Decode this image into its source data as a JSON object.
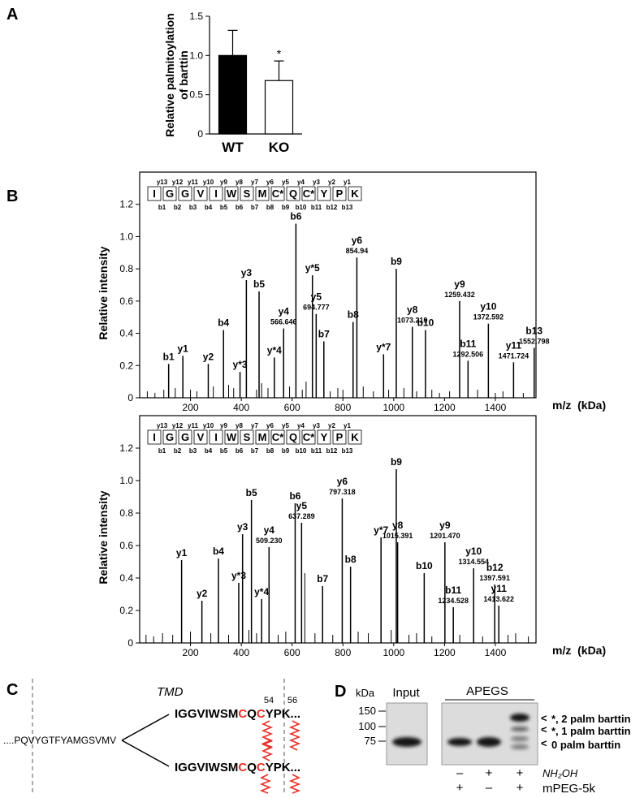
{
  "chart_data": [
    {
      "type": "bar",
      "panel": "A",
      "ylabel": [
        "Relative palmitoylation",
        "of barttin"
      ],
      "categories": [
        "WT",
        "KO"
      ],
      "values": [
        1.0,
        0.68
      ],
      "errors": [
        0.32,
        0.25
      ],
      "colors": [
        "#000000",
        "#ffffff"
      ],
      "annotations": [
        null,
        "*"
      ],
      "ylim": [
        0,
        1.5
      ],
      "yticks": [
        0,
        0.5,
        {
          "value": 1,
          "label": "1.0"
        },
        1.5
      ]
    },
    {
      "type": "spectrum",
      "panel": "B",
      "sequence": [
        "I",
        "G",
        "G",
        "V",
        "I",
        "W",
        "S",
        "M",
        "C*",
        "Q",
        "C*",
        "Y",
        "P",
        "K"
      ],
      "residue_colors": [
        "#000",
        "#000",
        "#000",
        "#000",
        "#000",
        "#000",
        "#000",
        "#000",
        "#e8312a",
        "#000",
        "#e8312a",
        "#000",
        "#000",
        "#000"
      ],
      "y_ions": [
        "y13",
        "y12",
        "y11",
        "y10",
        "y9",
        "y8",
        "y7",
        "y6",
        "y5",
        "y4",
        "y3",
        "y2",
        "y1"
      ],
      "b_ions": [
        "b1",
        "b2",
        "b3",
        "b4",
        "b5",
        "b6",
        "b7",
        "b8",
        "b9",
        "b10",
        "b11",
        "b12",
        "b13"
      ],
      "ylabel": "Relative intensity",
      "xlabel": "m/z  (kDa)",
      "x": [
        114,
        170,
        270,
        330,
        395,
        420,
        470,
        530,
        566.646,
        615,
        680,
        694.777,
        725,
        840,
        854.94,
        960,
        1010,
        1073.219,
        1125,
        1259.432,
        1292.506,
        1372.592,
        1471.724,
        1552.798
      ],
      "values": [
        0.21,
        0.26,
        0.21,
        0.42,
        0.16,
        0.73,
        0.66,
        0.25,
        0.43,
        1.08,
        0.76,
        0.52,
        0.35,
        0.47,
        0.87,
        0.27,
        0.8,
        0.44,
        0.42,
        0.6,
        0.23,
        0.46,
        0.22,
        0.31
      ],
      "ions": [
        "b1",
        "y1",
        "y2",
        "b4",
        "y*3",
        "y3",
        "b5",
        "y*4",
        "y4",
        "b6",
        "y*5",
        "y5",
        "b7",
        "b8",
        "y6",
        "y*7",
        "b9",
        "y8",
        "b10",
        "y9",
        "b11",
        "y10",
        "y11",
        "b13"
      ],
      "mz_labels": [
        null,
        null,
        null,
        null,
        null,
        null,
        null,
        null,
        "566.646",
        null,
        null,
        "694.777",
        null,
        null,
        "854.94",
        null,
        null,
        "1073.219",
        null,
        "1259.432",
        "1292.506",
        "1372.592",
        "1471.724",
        "1552.798"
      ],
      "label_colors": [
        "#000",
        "#000",
        "#000",
        "#000",
        "#000",
        "#000",
        "#000",
        "#000",
        "#e8312a",
        "#000",
        "#000",
        "#e8312a",
        "#000",
        "#000",
        "#e8312a",
        "#000",
        "#000",
        "#e8312a",
        "#000",
        "#e8312a",
        "#1a7fc1",
        "#e8312a",
        "#e8312a",
        "#1a7fc1"
      ],
      "minor_x": [
        30,
        60,
        95,
        140,
        200,
        225,
        290,
        350,
        370,
        460,
        480,
        505,
        590,
        640,
        655,
        750,
        780,
        800,
        880,
        920,
        980,
        1040,
        1090,
        1150,
        1180,
        1220,
        1330,
        1400,
        1430,
        1510
      ],
      "minor_values": [
        0.04,
        0.03,
        0.05,
        0.06,
        0.05,
        0.04,
        0.07,
        0.08,
        0.06,
        0.05,
        0.09,
        0.06,
        0.07,
        0.05,
        0.1,
        0.04,
        0.06,
        0.05,
        0.07,
        0.04,
        0.05,
        0.06,
        0.04,
        0.05,
        0.03,
        0.04,
        0.05,
        0.03,
        0.04,
        0.03
      ],
      "xlim": [
        0,
        1560
      ],
      "ylim": [
        0,
        1.4
      ],
      "xticks": [
        200,
        400,
        600,
        800,
        1000,
        1200,
        1400
      ],
      "yticks": [
        0,
        0.2,
        0.4,
        0.6,
        0.8,
        {
          "value": 1,
          "label": "1.0"
        },
        1.2
      ]
    },
    {
      "type": "spectrum",
      "sequence": [
        "I",
        "G",
        "G",
        "V",
        "I",
        "W",
        "S",
        "M",
        "C*",
        "Q",
        "C*",
        "Y",
        "P",
        "K"
      ],
      "residue_colors": [
        "#000",
        "#000",
        "#000",
        "#000",
        "#000",
        "#000",
        "#000",
        "#000",
        "#e8312a",
        "#000",
        "#000",
        "#000",
        "#000",
        "#000"
      ],
      "y_ions": [
        "y13",
        "y12",
        "y11",
        "y10",
        "y9",
        "y8",
        "y7",
        "y6",
        "y5",
        "y4",
        "y3",
        "y2",
        "y1"
      ],
      "b_ions": [
        "b1",
        "b2",
        "b3",
        "b4",
        "b5",
        "b6",
        "b7",
        "b8",
        "b9",
        "b10",
        "b11",
        "b12",
        "b13"
      ],
      "ylabel": "Relative intensity",
      "xlabel": "m/z  (kDa)",
      "x": [
        165,
        245,
        310,
        390,
        405,
        440,
        480,
        509.23,
        612,
        637.289,
        720,
        797.318,
        830,
        950,
        1010,
        1015.391,
        1120,
        1201.47,
        1234.528,
        1314.554,
        1413.622,
        1397.591
      ],
      "values": [
        0.51,
        0.26,
        0.52,
        0.37,
        0.67,
        0.88,
        0.27,
        0.59,
        0.86,
        0.74,
        0.35,
        0.89,
        0.47,
        0.65,
        1.07,
        0.62,
        0.43,
        0.62,
        0.22,
        0.46,
        0.23,
        0.36
      ],
      "ions": [
        "y1",
        "y2",
        "b4",
        "y*3",
        "y3",
        "b5",
        "y*4",
        "y4",
        "b6",
        "y5",
        "b7",
        "y6",
        "b8",
        "y*7",
        "b9",
        "y8",
        "b10",
        "y9",
        "b11",
        "y10",
        "y11",
        "b12"
      ],
      "mz_labels": [
        null,
        null,
        null,
        null,
        null,
        null,
        null,
        "509.230",
        null,
        "637.289",
        null,
        "797.318",
        null,
        null,
        null,
        "1015.391",
        null,
        "1201.470",
        "1234.528",
        "1314.554",
        "1413.622",
        "1397.591"
      ],
      "label_colors": [
        "#000",
        "#000",
        "#000",
        "#000",
        "#000",
        "#000",
        "#000",
        "#e8312a",
        "#000",
        "#e8312a",
        "#000",
        "#e8312a",
        "#000",
        "#000",
        "#000",
        "#e8312a",
        "#000",
        "#e8312a",
        "#1a7fc1",
        "#e8312a",
        "#e8312a",
        "#1a7fc1"
      ],
      "minor_x": [
        25,
        55,
        90,
        130,
        200,
        280,
        350,
        430,
        460,
        545,
        575,
        650,
        690,
        760,
        860,
        900,
        990,
        1060,
        1090,
        1150,
        1260,
        1350,
        1450,
        1480,
        1530
      ],
      "minor_values": [
        0.05,
        0.04,
        0.06,
        0.05,
        0.07,
        0.06,
        0.05,
        0.08,
        0.06,
        0.05,
        0.07,
        0.43,
        0.06,
        0.05,
        0.07,
        0.06,
        0.08,
        0.05,
        0.06,
        0.04,
        0.05,
        0.04,
        0.05,
        0.06,
        0.04
      ],
      "xlim": [
        0,
        1560
      ],
      "ylim": [
        0,
        1.4
      ],
      "xticks": [
        200,
        400,
        600,
        800,
        1000,
        1200,
        1400
      ],
      "yticks": [
        0,
        0.2,
        0.4,
        0.6,
        0.8,
        {
          "value": 1,
          "label": "1.0"
        },
        1.2
      ]
    }
  ],
  "diagram": {
    "label": "C",
    "upstream": "....PQVYGTFYAMGSVMV",
    "region": "TMD",
    "sites": [
      54,
      56
    ],
    "rows": [
      [
        "IGGVIWSM",
        "C",
        "Q",
        "C",
        "YPK..."
      ],
      [
        "IGGVIWSM",
        "C",
        "Q",
        "C",
        "YPK..."
      ]
    ]
  },
  "blot": {
    "label": "D",
    "unit": "kDa",
    "markers": [
      150,
      100,
      75
    ],
    "panels": [
      "Input",
      "APEGS"
    ],
    "bands": [
      "*, 2 palm barttin",
      "*, 1 palm barttin",
      "0 palm barttin"
    ],
    "treatments": [
      {
        "name": "NH₂OH",
        "lanes": [
          "–",
          "+",
          "+"
        ]
      },
      {
        "name": "mPEG-5k",
        "lanes": [
          "+",
          "–",
          "+"
        ]
      }
    ]
  }
}
